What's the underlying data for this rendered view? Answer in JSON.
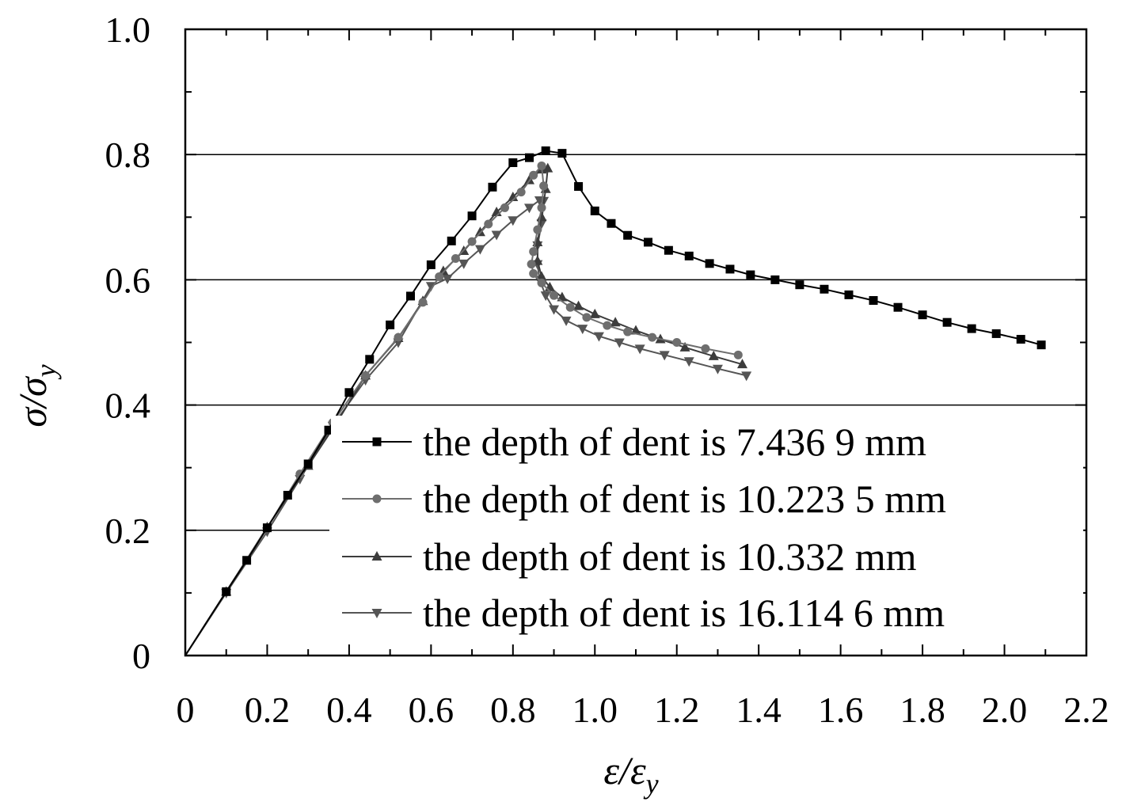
{
  "chart_data": {
    "type": "line",
    "title": "",
    "xlabel": {
      "base": "ε/ε",
      "sub": "y"
    },
    "ylabel": {
      "base": "σ/σ",
      "sub": "y"
    },
    "xlim": [
      0,
      2.2
    ],
    "ylim": [
      0,
      1.0
    ],
    "xticks": [
      "0",
      "0.2",
      "0.4",
      "0.6",
      "0.8",
      "1.0",
      "1.2",
      "1.4",
      "1.6",
      "1.8",
      "2.0",
      "2.2"
    ],
    "yticks": [
      "0",
      "0.2",
      "0.4",
      "0.6",
      "0.8",
      "1.0"
    ],
    "grid": "horizontal lines at 0.4, 0.6, 0.8",
    "legend_position": "lower-right",
    "series": [
      {
        "name": "the depth of dent is 7.436 9 mm",
        "marker": "square",
        "color": "#000000",
        "x": [
          0,
          0.1,
          0.15,
          0.2,
          0.25,
          0.3,
          0.35,
          0.4,
          0.45,
          0.5,
          0.55,
          0.6,
          0.65,
          0.7,
          0.75,
          0.8,
          0.84,
          0.88,
          0.92,
          0.96,
          1.0,
          1.04,
          1.08,
          1.13,
          1.18,
          1.23,
          1.28,
          1.33,
          1.38,
          1.44,
          1.5,
          1.56,
          1.62,
          1.68,
          1.74,
          1.8,
          1.86,
          1.92,
          1.98,
          2.04,
          2.09
        ],
        "y": [
          0,
          0.102,
          0.152,
          0.204,
          0.256,
          0.306,
          0.36,
          0.42,
          0.473,
          0.528,
          0.574,
          0.624,
          0.662,
          0.702,
          0.748,
          0.787,
          0.795,
          0.806,
          0.802,
          0.749,
          0.71,
          0.69,
          0.671,
          0.66,
          0.647,
          0.638,
          0.626,
          0.617,
          0.608,
          0.6,
          0.592,
          0.585,
          0.576,
          0.567,
          0.556,
          0.544,
          0.532,
          0.522,
          0.514,
          0.505,
          0.496
        ]
      },
      {
        "name": "the depth of dent is 10.223 5 mm",
        "marker": "circle",
        "color": "#6e6e6e",
        "x": [
          0,
          0.1,
          0.2,
          0.28,
          0.36,
          0.44,
          0.52,
          0.58,
          0.62,
          0.66,
          0.7,
          0.74,
          0.78,
          0.82,
          0.85,
          0.87,
          0.875,
          0.87,
          0.86,
          0.85,
          0.845,
          0.85,
          0.87,
          0.9,
          0.94,
          0.98,
          1.03,
          1.08,
          1.14,
          1.2,
          1.27,
          1.35
        ],
        "y": [
          0,
          0.102,
          0.204,
          0.29,
          0.372,
          0.447,
          0.508,
          0.564,
          0.605,
          0.634,
          0.661,
          0.689,
          0.715,
          0.74,
          0.767,
          0.782,
          0.75,
          0.715,
          0.68,
          0.645,
          0.625,
          0.61,
          0.595,
          0.575,
          0.556,
          0.54,
          0.527,
          0.517,
          0.508,
          0.5,
          0.49,
          0.48
        ]
      },
      {
        "name": "the depth of dent is 10.332 mm",
        "marker": "triangle-up",
        "color": "#3c3c3c",
        "x": [
          0,
          0.1,
          0.2,
          0.3,
          0.37,
          0.44,
          0.52,
          0.58,
          0.63,
          0.68,
          0.72,
          0.76,
          0.8,
          0.84,
          0.87,
          0.885,
          0.88,
          0.87,
          0.86,
          0.86,
          0.87,
          0.89,
          0.92,
          0.96,
          1.0,
          1.05,
          1.1,
          1.16,
          1.22,
          1.29,
          1.36
        ],
        "y": [
          0,
          0.102,
          0.205,
          0.303,
          0.372,
          0.447,
          0.507,
          0.566,
          0.614,
          0.646,
          0.676,
          0.708,
          0.732,
          0.759,
          0.776,
          0.778,
          0.745,
          0.7,
          0.66,
          0.63,
          0.605,
          0.588,
          0.572,
          0.558,
          0.545,
          0.532,
          0.519,
          0.505,
          0.492,
          0.478,
          0.465
        ]
      },
      {
        "name": "the depth of dent is 16.114 6 mm",
        "marker": "triangle-down",
        "color": "#555555",
        "x": [
          0,
          0.1,
          0.2,
          0.28,
          0.36,
          0.44,
          0.52,
          0.6,
          0.64,
          0.68,
          0.72,
          0.76,
          0.8,
          0.84,
          0.865,
          0.875,
          0.87,
          0.86,
          0.86,
          0.865,
          0.88,
          0.9,
          0.93,
          0.97,
          1.01,
          1.06,
          1.11,
          1.17,
          1.23,
          1.3,
          1.37
        ],
        "y": [
          0,
          0.1,
          0.198,
          0.282,
          0.367,
          0.44,
          0.5,
          0.59,
          0.602,
          0.626,
          0.649,
          0.672,
          0.695,
          0.715,
          0.727,
          0.726,
          0.69,
          0.655,
          0.625,
          0.6,
          0.575,
          0.553,
          0.535,
          0.522,
          0.51,
          0.5,
          0.49,
          0.48,
          0.47,
          0.458,
          0.447
        ]
      }
    ]
  }
}
